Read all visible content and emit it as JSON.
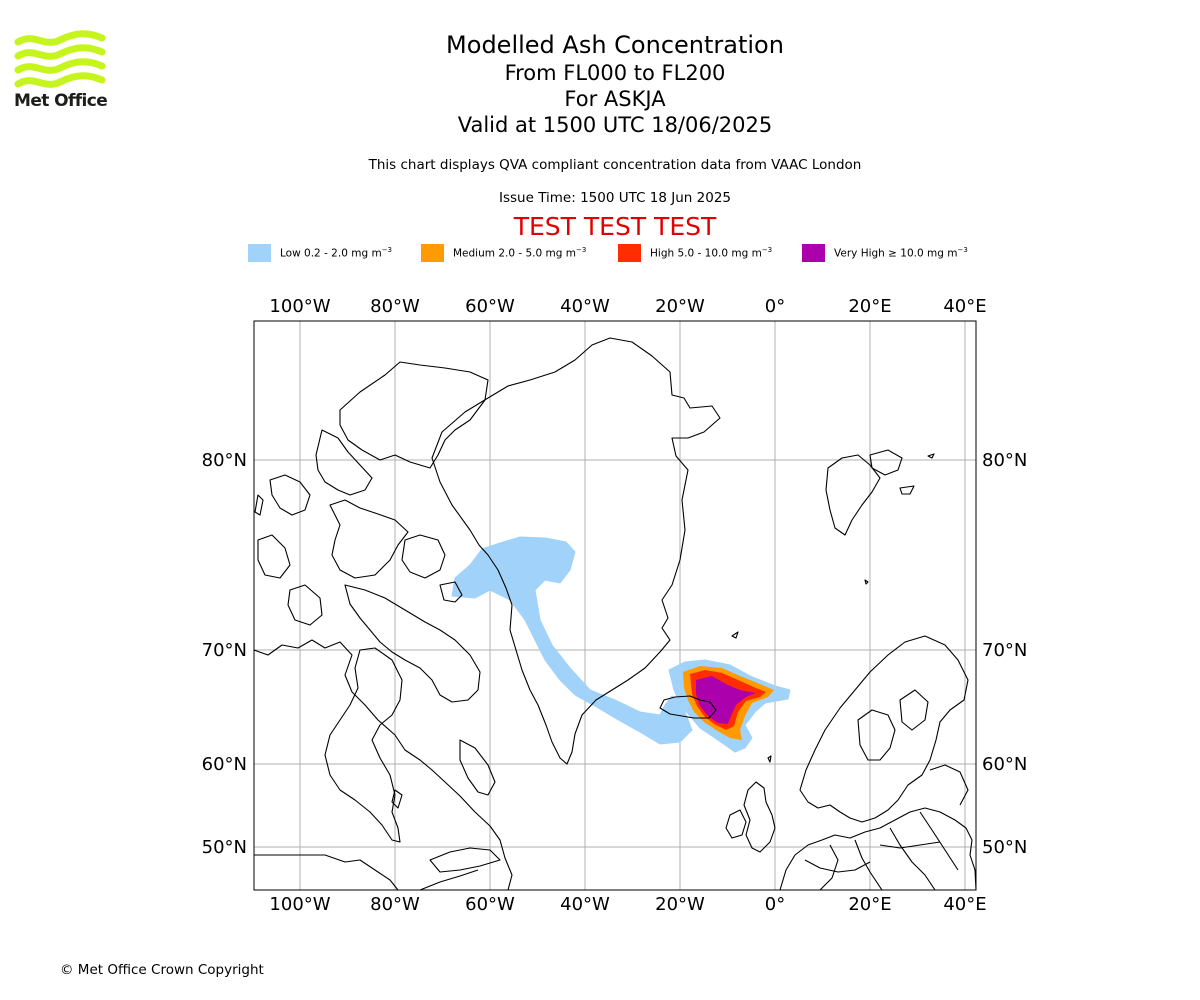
{
  "logo": {
    "text": "Met Office",
    "wave_color": "#c6f51d"
  },
  "titles": {
    "line1": "Modelled Ash Concentration",
    "line2": "From FL000 to FL200",
    "line3": "For ASKJA",
    "line4": "Valid at 1500 UTC 18/06/2025"
  },
  "notes": {
    "compliance": "This chart displays QVA compliant concentration data from VAAC London",
    "issue_time": "Issue Time: 1500 UTC 18 Jun 2025"
  },
  "test_banner": {
    "text": "TEST TEST TEST",
    "color": "#e00000"
  },
  "legend": [
    {
      "label": "Low 0.2 - 2.0 mg m",
      "exp": "−3",
      "color": "#a0d2fa"
    },
    {
      "label": "Medium 2.0 - 5.0 mg m",
      "exp": "−3",
      "color": "#ff9a00"
    },
    {
      "label": "High 5.0 - 10.0 mg m",
      "exp": "−3",
      "color": "#ff2d00"
    },
    {
      "label": "Very High  ≥  10.0 mg m",
      "exp": "−3",
      "color": "#ad00ad"
    }
  ],
  "map": {
    "lon_labels": [
      "100°W",
      "80°W",
      "60°W",
      "40°W",
      "20°W",
      "0°",
      "20°E",
      "40°E"
    ],
    "lat_labels": [
      "80°N",
      "70°N",
      "60°N",
      "50°N"
    ],
    "grid": true,
    "coastline_color": "#000000",
    "volcano": "ASKJA"
  },
  "copyright": "© Met Office Crown Copyright"
}
